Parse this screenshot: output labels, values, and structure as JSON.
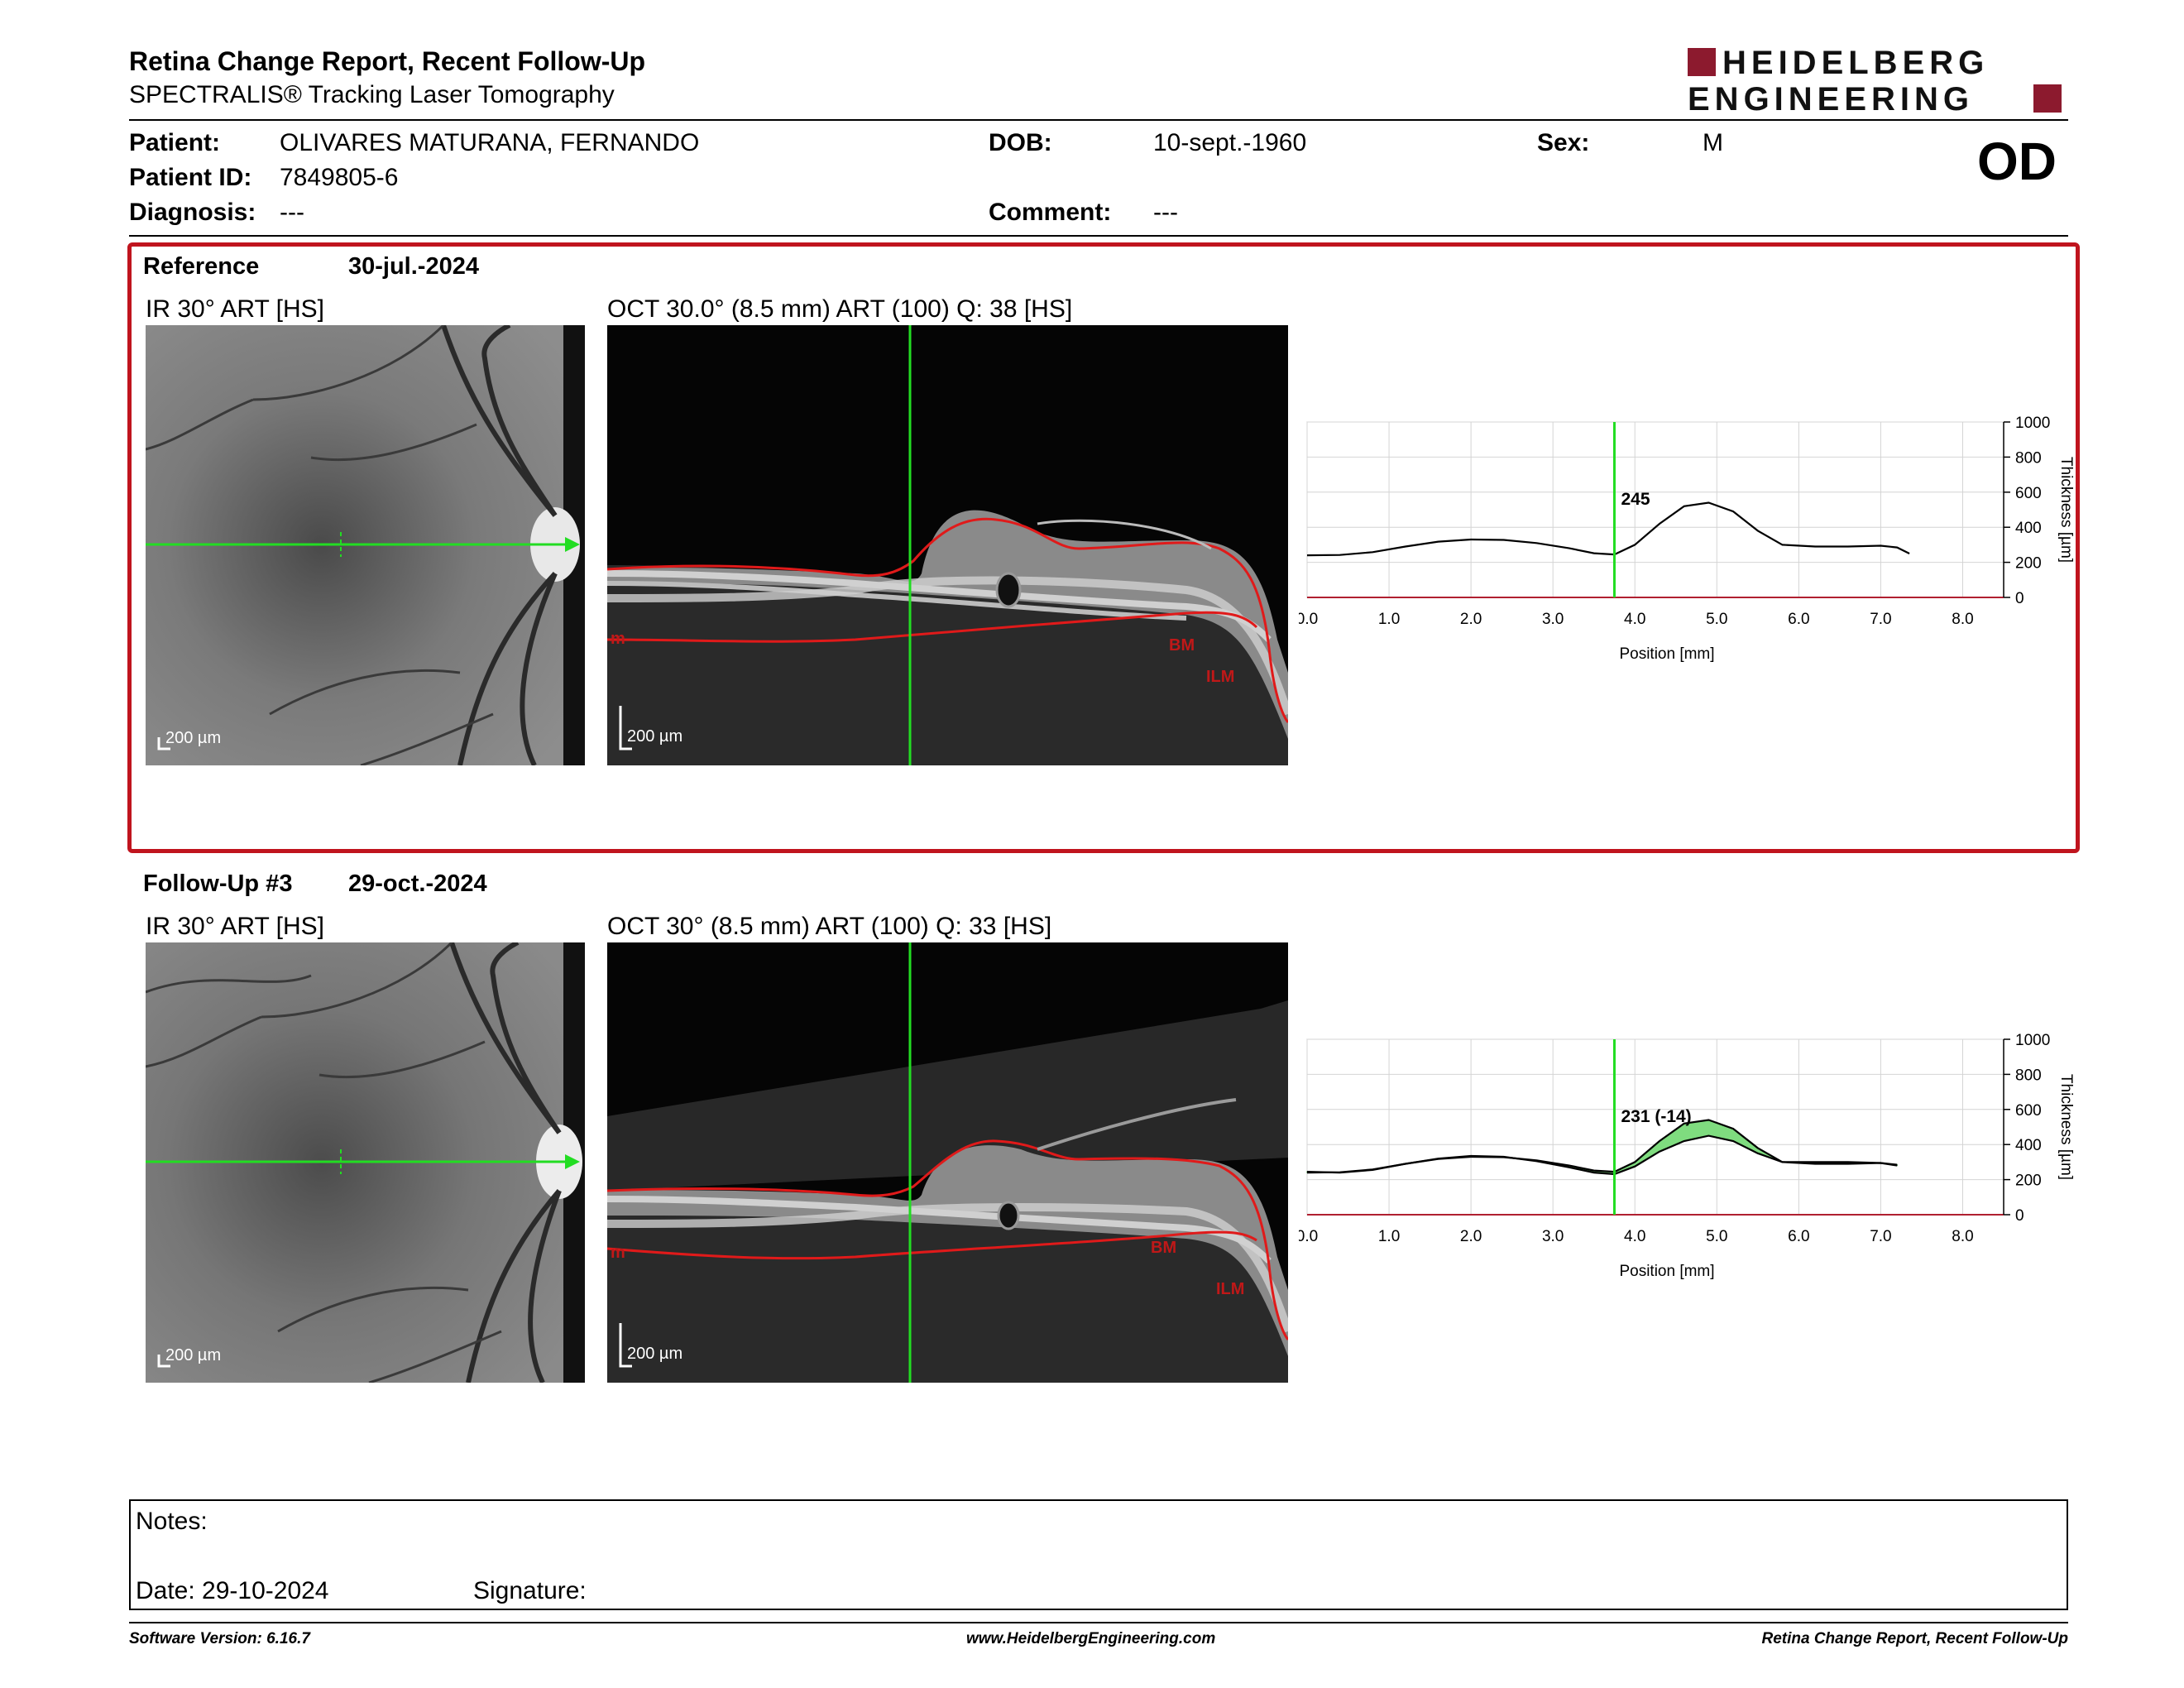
{
  "header": {
    "title": "Retina Change Report, Recent Follow-Up",
    "subtitle": "SPECTRALIS® Tracking Laser Tomography",
    "logo_line1": "HEIDELBERG",
    "logo_line2": "ENGINEERING"
  },
  "patient": {
    "patient_label": "Patient:",
    "patient_value": "OLIVARES MATURANA, FERNANDO",
    "id_label": "Patient ID:",
    "id_value": "7849805-6",
    "diagnosis_label": "Diagnosis:",
    "diagnosis_value": "---",
    "dob_label": "DOB:",
    "dob_value": "10-sept.-1960",
    "comment_label": "Comment:",
    "comment_value": "---",
    "sex_label": "Sex:",
    "sex_value": "M",
    "eye": "OD"
  },
  "reference": {
    "heading": "Reference",
    "date": "30-jul.-2024",
    "ir_label": "IR 30° ART [HS]",
    "oct_label": "OCT 30.0° (8.5 mm) ART (100) Q: 38 [HS]",
    "ir_scale": "200 µm",
    "oct_scale": "200 µm",
    "layer_bm": "BM",
    "layer_ilm": "ILM",
    "layer_edge": "m"
  },
  "followup": {
    "heading": "Follow-Up #3",
    "date": "29-oct.-2024",
    "ir_label": "IR 30° ART [HS]",
    "oct_label": "OCT 30° (8.5 mm) ART (100) Q: 33 [HS]",
    "ir_scale": "200 µm",
    "oct_scale": "200 µm",
    "layer_bm": "BM",
    "layer_ilm": "ILM",
    "layer_edge": "m"
  },
  "chart_data": [
    {
      "type": "line",
      "xlabel": "Position [mm]",
      "ylabel": "Thickness [µm]",
      "xlim": [
        0,
        8.5
      ],
      "ylim": [
        0,
        1000
      ],
      "x_ticks": [
        "0.0",
        "1.0",
        "2.0",
        "3.0",
        "4.0",
        "5.0",
        "6.0",
        "7.0",
        "8.0"
      ],
      "y_ticks": [
        "0",
        "200",
        "400",
        "600",
        "800",
        "1000"
      ],
      "grid": true,
      "cursor_x": 3.75,
      "cursor_label": "245",
      "series": [
        {
          "x": [
            0.0,
            0.4,
            0.8,
            1.2,
            1.6,
            2.0,
            2.4,
            2.8,
            3.2,
            3.5,
            3.75,
            4.0,
            4.3,
            4.6,
            4.9,
            5.2,
            5.5,
            5.8,
            6.2,
            6.6,
            7.0,
            7.2,
            7.35
          ],
          "y": [
            240,
            242,
            258,
            290,
            318,
            330,
            328,
            310,
            280,
            252,
            245,
            300,
            420,
            520,
            540,
            490,
            380,
            300,
            290,
            290,
            295,
            285,
            250
          ]
        }
      ]
    },
    {
      "type": "line",
      "xlabel": "Position [mm]",
      "ylabel": "Thickness [µm]",
      "xlim": [
        0,
        8.5
      ],
      "ylim": [
        0,
        1000
      ],
      "x_ticks": [
        "0.0",
        "1.0",
        "2.0",
        "3.0",
        "4.0",
        "5.0",
        "6.0",
        "7.0",
        "8.0"
      ],
      "y_ticks": [
        "0",
        "200",
        "400",
        "600",
        "800",
        "1000"
      ],
      "grid": true,
      "cursor_x": 3.75,
      "cursor_label": "231 (-14)",
      "fill_color": "#7fdc7f",
      "series": [
        {
          "x": [
            0.0,
            0.4,
            0.8,
            1.2,
            1.6,
            2.0,
            2.4,
            2.8,
            3.2,
            3.5,
            3.75,
            4.0,
            4.3,
            4.6,
            4.9,
            5.2,
            5.5,
            5.8,
            6.2,
            6.6,
            7.0,
            7.2
          ],
          "y": [
            245,
            240,
            255,
            290,
            320,
            335,
            330,
            305,
            270,
            240,
            231,
            275,
            360,
            420,
            450,
            420,
            350,
            300,
            300,
            300,
            295,
            280
          ]
        },
        {
          "x": [
            0.0,
            0.4,
            0.8,
            1.2,
            1.6,
            2.0,
            2.4,
            2.8,
            3.2,
            3.5,
            3.75,
            4.0,
            4.3,
            4.6,
            4.9,
            5.2,
            5.5,
            5.8,
            6.2,
            6.6,
            7.0,
            7.2
          ],
          "y": [
            240,
            242,
            258,
            290,
            318,
            330,
            328,
            310,
            280,
            252,
            245,
            300,
            420,
            520,
            540,
            490,
            380,
            300,
            290,
            290,
            295,
            285
          ]
        }
      ]
    }
  ],
  "notes": {
    "notes_label": "Notes:",
    "date_label": "Date: 29-10-2024",
    "signature_label": "Signature:"
  },
  "footer": {
    "version": "Software Version: 6.16.7",
    "website": "www.HeidelbergEngineering.com",
    "report": "Retina Change Report, Recent Follow-Up"
  }
}
